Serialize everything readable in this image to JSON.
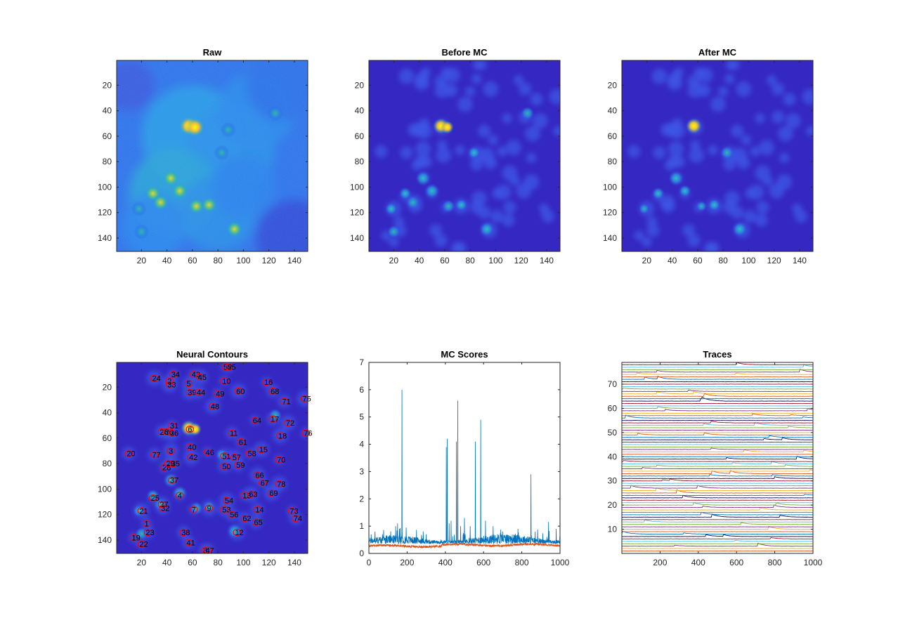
{
  "chart_data": [
    {
      "type": "heatmap",
      "title": "Raw",
      "colormap": "parula",
      "xlim": [
        0.5,
        150.5
      ],
      "ylim": [
        0.5,
        150.5
      ],
      "y_reversed": true,
      "xticks": [
        20,
        40,
        60,
        80,
        100,
        120,
        140
      ],
      "yticks": [
        20,
        40,
        60,
        80,
        100,
        120,
        140
      ],
      "bright_spots": [
        {
          "x": 57,
          "y": 52,
          "level": 1.0
        },
        {
          "x": 62,
          "y": 53,
          "level": 0.95
        },
        {
          "x": 43,
          "y": 93,
          "level": 0.75
        },
        {
          "x": 29,
          "y": 105,
          "level": 0.7
        },
        {
          "x": 50,
          "y": 103,
          "level": 0.65
        },
        {
          "x": 35,
          "y": 112,
          "level": 0.6
        },
        {
          "x": 63,
          "y": 115,
          "level": 0.6
        },
        {
          "x": 73,
          "y": 114,
          "level": 0.7
        },
        {
          "x": 93,
          "y": 133,
          "level": 0.8
        },
        {
          "x": 88,
          "y": 55,
          "level": 0.4
        },
        {
          "x": 83,
          "y": 73,
          "level": 0.4
        },
        {
          "x": 125,
          "y": 42,
          "level": 0.35
        },
        {
          "x": 18,
          "y": 117,
          "level": 0.4
        },
        {
          "x": 20,
          "y": 135,
          "level": 0.35
        }
      ]
    },
    {
      "type": "heatmap",
      "title": "Before MC",
      "colormap": "parula",
      "xlim": [
        0.5,
        150.5
      ],
      "ylim": [
        0.5,
        150.5
      ],
      "y_reversed": true,
      "xticks": [
        20,
        40,
        60,
        80,
        100,
        120,
        140
      ],
      "yticks": [
        20,
        40,
        60,
        80,
        100,
        120,
        140
      ]
    },
    {
      "type": "heatmap",
      "title": "After MC",
      "colormap": "parula",
      "xlim": [
        0.5,
        150.5
      ],
      "ylim": [
        0.5,
        150.5
      ],
      "y_reversed": true,
      "xticks": [
        20,
        40,
        60,
        80,
        100,
        120,
        140
      ],
      "yticks": [
        20,
        40,
        60,
        80,
        100,
        120,
        140
      ]
    },
    {
      "type": "heatmap",
      "title": "Neural Contours",
      "colormap": "parula",
      "contour_color": "#ff0000",
      "xlim": [
        0.5,
        150.5
      ],
      "ylim": [
        0.5,
        150.5
      ],
      "y_reversed": true,
      "xticks": [
        20,
        40,
        60,
        80,
        100,
        120,
        140
      ],
      "yticks": [
        20,
        40,
        60,
        80,
        100,
        120,
        140
      ],
      "contours": [
        {
          "label": "1",
          "x": 24,
          "y": 127
        },
        {
          "label": "2",
          "x": 42,
          "y": 15
        },
        {
          "label": "3",
          "x": 43,
          "y": 70
        },
        {
          "label": "4",
          "x": 50,
          "y": 105
        },
        {
          "label": "5",
          "x": 57,
          "y": 17
        },
        {
          "label": "6",
          "x": 58,
          "y": 53
        },
        {
          "label": "7",
          "x": 61,
          "y": 116
        },
        {
          "label": "8",
          "x": 70,
          "y": 148
        },
        {
          "label": "9",
          "x": 73,
          "y": 115
        },
        {
          "label": "10",
          "x": 85,
          "y": 15
        },
        {
          "label": "11",
          "x": 91,
          "y": 56
        },
        {
          "label": "12",
          "x": 95,
          "y": 134
        },
        {
          "label": "13",
          "x": 101,
          "y": 105
        },
        {
          "label": "14",
          "x": 111,
          "y": 116
        },
        {
          "label": "15",
          "x": 114,
          "y": 69
        },
        {
          "label": "16",
          "x": 118,
          "y": 16
        },
        {
          "label": "17",
          "x": 123,
          "y": 45
        },
        {
          "label": "18",
          "x": 129,
          "y": 58
        },
        {
          "label": "19",
          "x": 14,
          "y": 138
        },
        {
          "label": "20",
          "x": 10,
          "y": 72
        },
        {
          "label": "21",
          "x": 20,
          "y": 117
        },
        {
          "label": "22",
          "x": 20,
          "y": 143
        },
        {
          "label": "23",
          "x": 25,
          "y": 134
        },
        {
          "label": "24",
          "x": 30,
          "y": 13
        },
        {
          "label": "25",
          "x": 29,
          "y": 107
        },
        {
          "label": "26",
          "x": 36,
          "y": 55
        },
        {
          "label": "27",
          "x": 36,
          "y": 112
        },
        {
          "label": "28",
          "x": 38,
          "y": 83
        },
        {
          "label": "29",
          "x": 41,
          "y": 80
        },
        {
          "label": "30",
          "x": 40,
          "y": 55
        },
        {
          "label": "31",
          "x": 44,
          "y": 50
        },
        {
          "label": "32",
          "x": 37,
          "y": 115
        },
        {
          "label": "33",
          "x": 42,
          "y": 18
        },
        {
          "label": "34",
          "x": 45,
          "y": 10
        },
        {
          "label": "35",
          "x": 45,
          "y": 80
        },
        {
          "label": "36",
          "x": 44,
          "y": 56
        },
        {
          "label": "37",
          "x": 44,
          "y": 93
        },
        {
          "label": "38",
          "x": 53,
          "y": 134
        },
        {
          "label": "39",
          "x": 58,
          "y": 24
        },
        {
          "label": "40",
          "x": 58,
          "y": 67
        },
        {
          "label": "41",
          "x": 57,
          "y": 142
        },
        {
          "label": "42",
          "x": 59,
          "y": 75
        },
        {
          "label": "43",
          "x": 61,
          "y": 10
        },
        {
          "label": "44",
          "x": 65,
          "y": 24
        },
        {
          "label": "45",
          "x": 66,
          "y": 12
        },
        {
          "label": "46",
          "x": 72,
          "y": 71
        },
        {
          "label": "47",
          "x": 72,
          "y": 148
        },
        {
          "label": "48",
          "x": 76,
          "y": 35
        },
        {
          "label": "49",
          "x": 80,
          "y": 25
        },
        {
          "label": "50",
          "x": 85,
          "y": 82
        },
        {
          "label": "51",
          "x": 85,
          "y": 74
        },
        {
          "label": "52",
          "x": 86,
          "y": 4
        },
        {
          "label": "53",
          "x": 85,
          "y": 116
        },
        {
          "label": "54",
          "x": 87,
          "y": 109
        },
        {
          "label": "55",
          "x": 89,
          "y": 4
        },
        {
          "label": "56",
          "x": 91,
          "y": 120
        },
        {
          "label": "57",
          "x": 93,
          "y": 75
        },
        {
          "label": "58",
          "x": 105,
          "y": 72
        },
        {
          "label": "59",
          "x": 96,
          "y": 81
        },
        {
          "label": "60",
          "x": 96,
          "y": 23
        },
        {
          "label": "61",
          "x": 98,
          "y": 63
        },
        {
          "label": "62",
          "x": 101,
          "y": 123
        },
        {
          "label": "63",
          "x": 106,
          "y": 104
        },
        {
          "label": "64",
          "x": 109,
          "y": 46
        },
        {
          "label": "65",
          "x": 110,
          "y": 126
        },
        {
          "label": "66",
          "x": 111,
          "y": 89
        },
        {
          "label": "67",
          "x": 115,
          "y": 95
        },
        {
          "label": "68",
          "x": 123,
          "y": 23
        },
        {
          "label": "69",
          "x": 122,
          "y": 103
        },
        {
          "label": "70",
          "x": 128,
          "y": 77
        },
        {
          "label": "71",
          "x": 132,
          "y": 31
        },
        {
          "label": "72",
          "x": 135,
          "y": 48
        },
        {
          "label": "73",
          "x": 138,
          "y": 117
        },
        {
          "label": "74",
          "x": 141,
          "y": 123
        },
        {
          "label": "75",
          "x": 148,
          "y": 29
        },
        {
          "label": "76",
          "x": 149,
          "y": 56
        },
        {
          "label": "77",
          "x": 30,
          "y": 73
        },
        {
          "label": "78",
          "x": 128,
          "y": 96
        }
      ]
    },
    {
      "type": "line",
      "title": "MC Scores",
      "xlim": [
        0,
        1000
      ],
      "ylim": [
        0,
        7
      ],
      "xticks": [
        0,
        200,
        400,
        600,
        800,
        1000
      ],
      "yticks": [
        0,
        1,
        2,
        3,
        4,
        5,
        6,
        7
      ],
      "series": [
        {
          "color": "#0072BD",
          "baseline": 0.45,
          "peaks": [
            {
              "x": 140,
              "y": 1.0
            },
            {
              "x": 150,
              "y": 1.1
            },
            {
              "x": 160,
              "y": 0.9
            },
            {
              "x": 173,
              "y": 6.0
            },
            {
              "x": 195,
              "y": 0.95
            },
            {
              "x": 405,
              "y": 3.9
            },
            {
              "x": 410,
              "y": 4.2
            },
            {
              "x": 420,
              "y": 1.1
            },
            {
              "x": 430,
              "y": 1.2
            },
            {
              "x": 458,
              "y": 4.1
            },
            {
              "x": 465,
              "y": 5.6
            },
            {
              "x": 480,
              "y": 1.0
            },
            {
              "x": 500,
              "y": 1.3
            },
            {
              "x": 530,
              "y": 1.0
            },
            {
              "x": 557,
              "y": 4.1
            },
            {
              "x": 585,
              "y": 4.9
            },
            {
              "x": 610,
              "y": 1.2
            },
            {
              "x": 650,
              "y": 1.0
            },
            {
              "x": 700,
              "y": 0.8
            },
            {
              "x": 780,
              "y": 0.9
            },
            {
              "x": 848,
              "y": 2.9
            },
            {
              "x": 870,
              "y": 0.8
            },
            {
              "x": 940,
              "y": 1.15
            },
            {
              "x": 980,
              "y": 0.9
            }
          ]
        },
        {
          "color": "#D95319",
          "baseline": 0.28
        }
      ]
    },
    {
      "type": "line",
      "title": "Traces",
      "xlim": [
        0,
        1000
      ],
      "ylim": [
        0,
        79
      ],
      "xticks": [
        200,
        400,
        600,
        800,
        1000
      ],
      "yticks": [
        10,
        20,
        30,
        40,
        50,
        60,
        70
      ],
      "n_traces": 78,
      "colors": [
        "#0072BD",
        "#D95319",
        "#EDB120",
        "#7E2F8E",
        "#77AC30",
        "#4DBEEE",
        "#A2142F",
        "#0b0b55"
      ]
    }
  ]
}
